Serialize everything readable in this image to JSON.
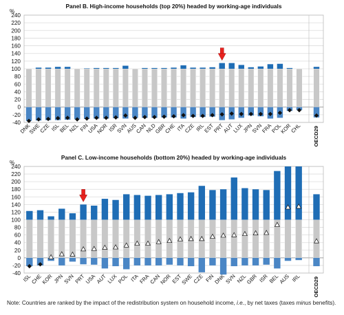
{
  "chart_data": [
    {
      "type": "bar",
      "title": "Panel B. High-income households (top 20%) headed by working-age individuals",
      "ylabel": "%",
      "ylim": [
        -40,
        240
      ],
      "yticks": [
        -40,
        -20,
        0,
        20,
        40,
        60,
        80,
        100,
        120,
        140,
        160,
        180,
        200,
        220,
        240
      ],
      "grid": true,
      "highlight": "PRT",
      "categories": [
        "DNK",
        "SWE",
        "CZE",
        "ISL",
        "BEL",
        "NZL",
        "FIN",
        "USA",
        "NOR",
        "ISR",
        "SVN",
        "AUS",
        "CAN",
        "NLD",
        "GBR",
        "CHE",
        "ITA",
        "CZE",
        "IRL",
        "EST",
        "PRT",
        "AUT",
        "LUX",
        "JPN",
        "SVN",
        "FRA",
        "POL",
        "KOR",
        "CHL",
        "OECD29"
      ],
      "series": [
        {
          "key": "market",
          "values": [
            100,
            100,
            100,
            100,
            100,
            100,
            100,
            100,
            100,
            100,
            100,
            100,
            100,
            100,
            100,
            100,
            100,
            100,
            100,
            100,
            100,
            100,
            100,
            100,
            100,
            100,
            100,
            100,
            100,
            100
          ]
        },
        {
          "key": "benefits",
          "values": [
            0,
            3,
            3,
            5,
            5,
            0,
            1,
            2,
            2,
            2,
            8,
            0,
            2,
            2,
            2,
            3,
            9,
            3,
            3,
            4,
            15,
            15,
            10,
            4,
            6,
            12,
            13,
            2,
            0,
            5
          ]
        },
        {
          "key": "taxes",
          "values": [
            -36,
            -35,
            -34,
            -34,
            -33,
            -32,
            -31,
            -30,
            -30,
            -29,
            -30,
            -28,
            -28,
            -28,
            -27,
            -27,
            -30,
            -26,
            -26,
            -25,
            -34,
            -32,
            -28,
            -22,
            -24,
            -30,
            -28,
            -10,
            -8,
            -27
          ]
        },
        {
          "key": "net",
          "values": [
            -36,
            -32,
            -31,
            -29,
            -28,
            -32,
            -30,
            -28,
            -28,
            -27,
            -22,
            -28,
            -26,
            -26,
            -25,
            -24,
            -21,
            -23,
            -23,
            -21,
            -19,
            -17,
            -18,
            -18,
            -18,
            -18,
            -15,
            -8,
            -8,
            -22
          ]
        }
      ]
    },
    {
      "type": "bar",
      "title": "Panel C. Low-income households (bottom 20%) headed by working-age individuals",
      "ylabel": "%",
      "ylim": [
        -40,
        240
      ],
      "yticks": [
        -40,
        -20,
        0,
        20,
        40,
        60,
        80,
        100,
        120,
        140,
        160,
        180,
        200,
        220,
        240
      ],
      "grid": true,
      "highlight": "PRT",
      "categories": [
        "ISL",
        "CHE",
        "KOR",
        "JPN",
        "SVN",
        "PRT",
        "USA",
        "AUT",
        "LUX",
        "POL",
        "ITA",
        "FRA",
        "CAN",
        "NOR",
        "EST",
        "SWE",
        "CZE",
        "FIN",
        "DNK",
        "SVN",
        "NZL",
        "GBR",
        "ISR",
        "BEL",
        "AUS",
        "IRL",
        "OECD29"
      ],
      "series": [
        {
          "key": "market",
          "values": [
            100,
            100,
            100,
            100,
            100,
            100,
            100,
            100,
            100,
            100,
            100,
            100,
            100,
            100,
            100,
            100,
            100,
            100,
            100,
            100,
            100,
            100,
            100,
            100,
            100,
            100,
            100
          ]
        },
        {
          "key": "benefits",
          "values": [
            23,
            25,
            9,
            29,
            17,
            40,
            37,
            55,
            52,
            67,
            65,
            63,
            65,
            67,
            70,
            72,
            89,
            78,
            80,
            111,
            83,
            80,
            78,
            128,
            140,
            140,
            67
          ]
        },
        {
          "key": "taxes",
          "values": [
            -22,
            -20,
            -8,
            -20,
            -10,
            -17,
            -18,
            -28,
            -22,
            -30,
            -20,
            -20,
            -20,
            -18,
            -20,
            -22,
            -38,
            -20,
            -44,
            -22,
            -20,
            -20,
            -18,
            -28,
            -8,
            -6,
            -22
          ]
        },
        {
          "key": "net",
          "values": [
            -22,
            -17,
            2,
            10,
            9,
            23,
            24,
            27,
            28,
            33,
            38,
            38,
            42,
            45,
            49,
            50,
            50,
            56,
            59,
            60,
            63,
            65,
            66,
            87,
            133,
            135,
            44
          ]
        }
      ]
    }
  ],
  "colors": {
    "market": "#c8c8c8",
    "benefits": "#1f6db5",
    "taxes": "#4a86c5",
    "highlight_arrow": "#e8231f",
    "grid": "#dcdcdc"
  },
  "note": {
    "prefix": "Note: Countries are ranked by the impact of the redistribution system on household income, ",
    "ie": "i.e.",
    "mid": ", by net taxes (taxes ",
    "minus": "minus",
    "suffix": " benefits)."
  }
}
